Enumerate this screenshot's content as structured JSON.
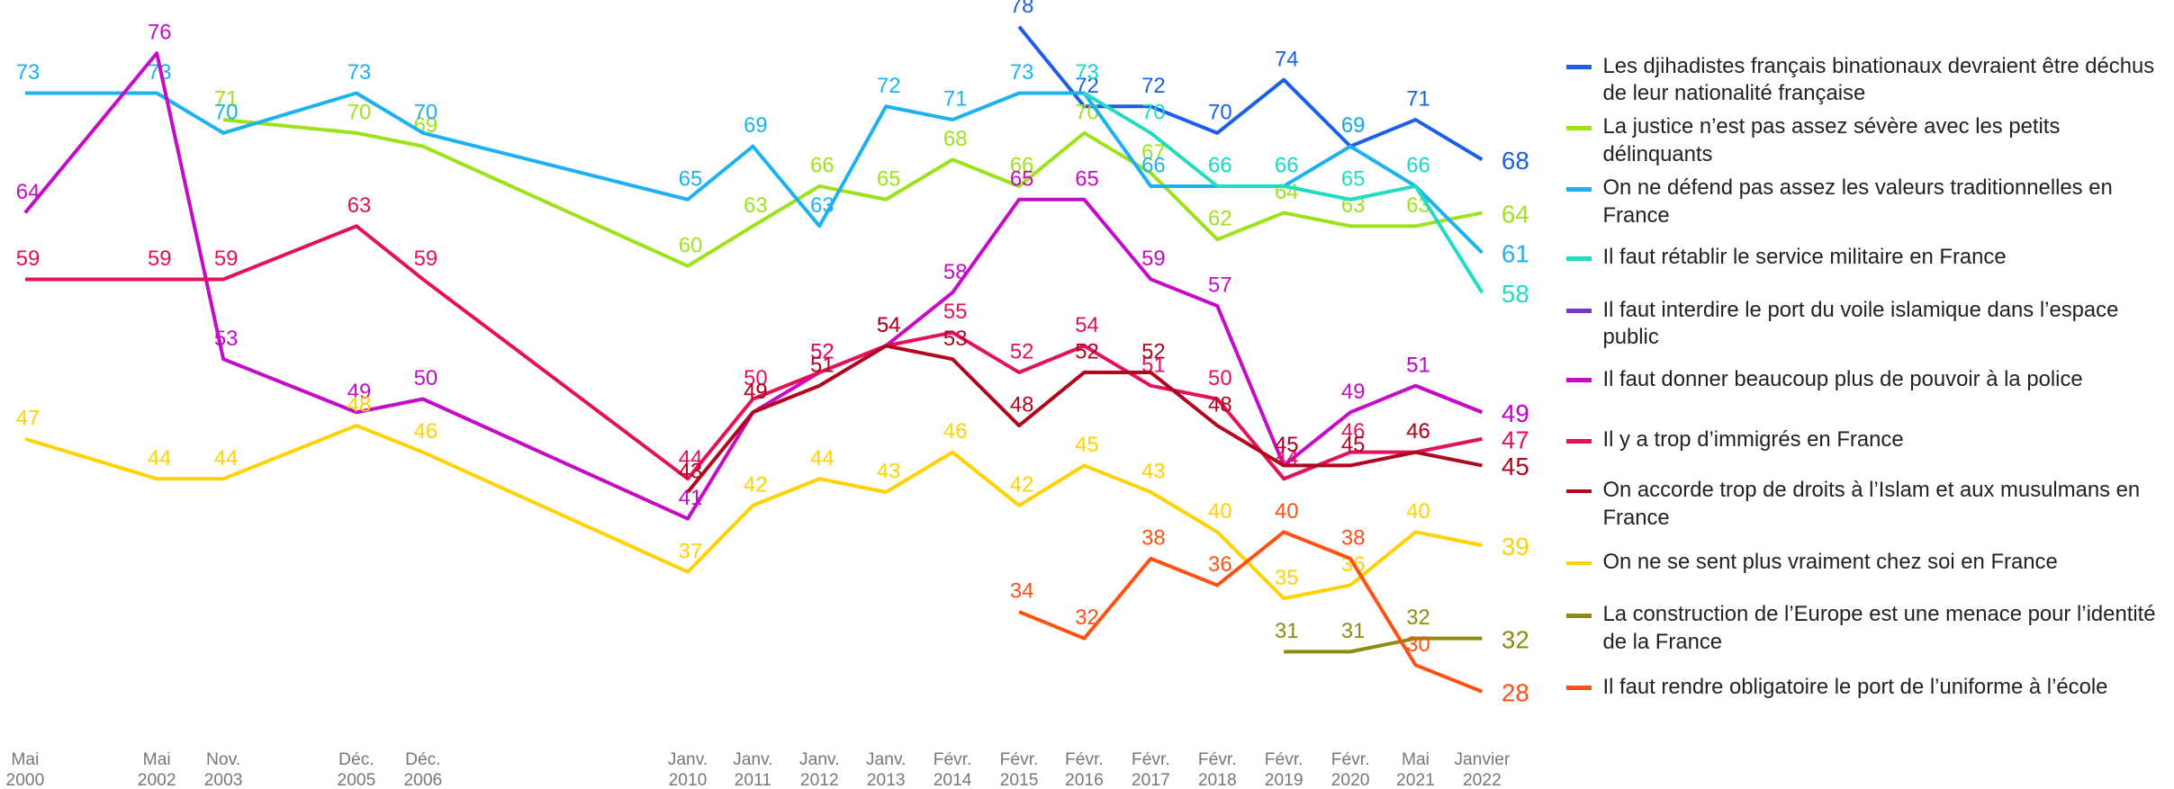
{
  "chart_data": {
    "type": "line",
    "categories": [
      "Mai 2000",
      "Mai 2002",
      "Nov. 2003",
      "Déc. 2005",
      "Déc. 2006",
      "Janv. 2010",
      "Janv. 2011",
      "Janv. 2012",
      "Janv. 2013",
      "Févr. 2014",
      "Févr. 2015",
      "Févr. 2016",
      "Févr. 2017",
      "Févr. 2018",
      "Févr. 2019",
      "Févr. 2020",
      "Mai 2021",
      "Janvier 2022"
    ],
    "ylim": [
      25,
      80
    ],
    "series": [
      {
        "name": "Les djihadistes français binationaux devraient être déchus de leur nationalité française",
        "color": "#1a5fe6",
        "values": [
          null,
          null,
          null,
          null,
          null,
          null,
          null,
          null,
          null,
          null,
          78,
          72,
          72,
          70,
          74,
          69,
          71,
          68
        ]
      },
      {
        "name": "La justice n’est pas assez sévère avec les petits délinquants",
        "color": "#9ee21c",
        "values": [
          null,
          null,
          71,
          70,
          69,
          60,
          63,
          66,
          65,
          68,
          66,
          70,
          67,
          62,
          64,
          63,
          63,
          64
        ]
      },
      {
        "name": "On ne défend pas assez les valeurs traditionnelles en France",
        "color": "#1cb2f2",
        "values": [
          73,
          73,
          70,
          73,
          70,
          65,
          69,
          63,
          72,
          71,
          73,
          73,
          66,
          66,
          66,
          69,
          66,
          61
        ]
      },
      {
        "name": "Il faut rétablir le service militaire en France",
        "color": "#22dcc2",
        "values": [
          null,
          null,
          null,
          null,
          null,
          null,
          null,
          null,
          null,
          null,
          null,
          73,
          70,
          66,
          66,
          65,
          66,
          58
        ]
      },
      {
        "name": "Il faut interdire le port du voile islamique dans l’espace public",
        "color": "#7a36c8",
        "values": [
          null,
          null,
          null,
          null,
          null,
          null,
          null,
          null,
          null,
          null,
          null,
          null,
          null,
          null,
          null,
          null,
          51,
          49
        ]
      },
      {
        "name": "Il faut donner beaucoup plus de pouvoir à la police",
        "color": "#c40cc8",
        "values": [
          64,
          76,
          53,
          49,
          50,
          41,
          49,
          52,
          54,
          58,
          65,
          65,
          59,
          57,
          45,
          49,
          51,
          49
        ]
      },
      {
        "name": "Il y a trop d’immigrés en France",
        "color": "#e4105c",
        "values": [
          59,
          59,
          59,
          63,
          59,
          44,
          50,
          52,
          54,
          55,
          52,
          54,
          51,
          50,
          44,
          46,
          46,
          47
        ]
      },
      {
        "name": "On accorde trop de droits à l’Islam et aux musulmans en France",
        "color": "#b0061e",
        "values": [
          null,
          null,
          null,
          null,
          null,
          43,
          49,
          51,
          54,
          53,
          48,
          52,
          52,
          48,
          45,
          45,
          46,
          45
        ]
      },
      {
        "name": "On ne se sent plus vraiment chez soi en France",
        "color": "#ffd200",
        "values": [
          47,
          44,
          44,
          48,
          46,
          37,
          42,
          44,
          43,
          46,
          42,
          45,
          43,
          40,
          35,
          36,
          40,
          39
        ]
      },
      {
        "name": "La construction de l’Europe est une menace pour l’identité de la France",
        "color": "#8c8c12",
        "values": [
          null,
          null,
          null,
          null,
          null,
          null,
          null,
          null,
          null,
          null,
          null,
          null,
          null,
          null,
          31,
          31,
          32,
          32
        ]
      },
      {
        "name": "Il faut rendre obligatoire le port de l’uniforme à l’école",
        "color": "#ff5212",
        "values": [
          null,
          null,
          null,
          null,
          null,
          null,
          null,
          null,
          null,
          null,
          34,
          32,
          38,
          36,
          40,
          38,
          30,
          28
        ]
      }
    ]
  }
}
